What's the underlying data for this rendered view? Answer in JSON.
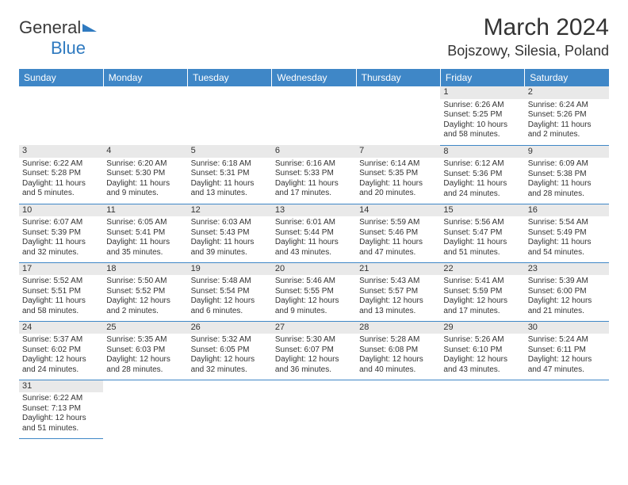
{
  "brand": {
    "name1": "General",
    "name2": "Blue"
  },
  "title": "March 2024",
  "location": "Bojszowy, Silesia, Poland",
  "colors": {
    "header_bg": "#3f87c7",
    "header_text": "#ffffff",
    "daynum_bg": "#e9e9e9",
    "border": "#3f87c7",
    "brand_blue": "#2f7ac0",
    "text": "#333333"
  },
  "weekdays": [
    "Sunday",
    "Monday",
    "Tuesday",
    "Wednesday",
    "Thursday",
    "Friday",
    "Saturday"
  ],
  "weeks": [
    [
      null,
      null,
      null,
      null,
      null,
      {
        "n": "1",
        "sr": "Sunrise: 6:26 AM",
        "ss": "Sunset: 5:25 PM",
        "d1": "Daylight: 10 hours",
        "d2": "and 58 minutes."
      },
      {
        "n": "2",
        "sr": "Sunrise: 6:24 AM",
        "ss": "Sunset: 5:26 PM",
        "d1": "Daylight: 11 hours",
        "d2": "and 2 minutes."
      }
    ],
    [
      {
        "n": "3",
        "sr": "Sunrise: 6:22 AM",
        "ss": "Sunset: 5:28 PM",
        "d1": "Daylight: 11 hours",
        "d2": "and 5 minutes."
      },
      {
        "n": "4",
        "sr": "Sunrise: 6:20 AM",
        "ss": "Sunset: 5:30 PM",
        "d1": "Daylight: 11 hours",
        "d2": "and 9 minutes."
      },
      {
        "n": "5",
        "sr": "Sunrise: 6:18 AM",
        "ss": "Sunset: 5:31 PM",
        "d1": "Daylight: 11 hours",
        "d2": "and 13 minutes."
      },
      {
        "n": "6",
        "sr": "Sunrise: 6:16 AM",
        "ss": "Sunset: 5:33 PM",
        "d1": "Daylight: 11 hours",
        "d2": "and 17 minutes."
      },
      {
        "n": "7",
        "sr": "Sunrise: 6:14 AM",
        "ss": "Sunset: 5:35 PM",
        "d1": "Daylight: 11 hours",
        "d2": "and 20 minutes."
      },
      {
        "n": "8",
        "sr": "Sunrise: 6:12 AM",
        "ss": "Sunset: 5:36 PM",
        "d1": "Daylight: 11 hours",
        "d2": "and 24 minutes."
      },
      {
        "n": "9",
        "sr": "Sunrise: 6:09 AM",
        "ss": "Sunset: 5:38 PM",
        "d1": "Daylight: 11 hours",
        "d2": "and 28 minutes."
      }
    ],
    [
      {
        "n": "10",
        "sr": "Sunrise: 6:07 AM",
        "ss": "Sunset: 5:39 PM",
        "d1": "Daylight: 11 hours",
        "d2": "and 32 minutes."
      },
      {
        "n": "11",
        "sr": "Sunrise: 6:05 AM",
        "ss": "Sunset: 5:41 PM",
        "d1": "Daylight: 11 hours",
        "d2": "and 35 minutes."
      },
      {
        "n": "12",
        "sr": "Sunrise: 6:03 AM",
        "ss": "Sunset: 5:43 PM",
        "d1": "Daylight: 11 hours",
        "d2": "and 39 minutes."
      },
      {
        "n": "13",
        "sr": "Sunrise: 6:01 AM",
        "ss": "Sunset: 5:44 PM",
        "d1": "Daylight: 11 hours",
        "d2": "and 43 minutes."
      },
      {
        "n": "14",
        "sr": "Sunrise: 5:59 AM",
        "ss": "Sunset: 5:46 PM",
        "d1": "Daylight: 11 hours",
        "d2": "and 47 minutes."
      },
      {
        "n": "15",
        "sr": "Sunrise: 5:56 AM",
        "ss": "Sunset: 5:47 PM",
        "d1": "Daylight: 11 hours",
        "d2": "and 51 minutes."
      },
      {
        "n": "16",
        "sr": "Sunrise: 5:54 AM",
        "ss": "Sunset: 5:49 PM",
        "d1": "Daylight: 11 hours",
        "d2": "and 54 minutes."
      }
    ],
    [
      {
        "n": "17",
        "sr": "Sunrise: 5:52 AM",
        "ss": "Sunset: 5:51 PM",
        "d1": "Daylight: 11 hours",
        "d2": "and 58 minutes."
      },
      {
        "n": "18",
        "sr": "Sunrise: 5:50 AM",
        "ss": "Sunset: 5:52 PM",
        "d1": "Daylight: 12 hours",
        "d2": "and 2 minutes."
      },
      {
        "n": "19",
        "sr": "Sunrise: 5:48 AM",
        "ss": "Sunset: 5:54 PM",
        "d1": "Daylight: 12 hours",
        "d2": "and 6 minutes."
      },
      {
        "n": "20",
        "sr": "Sunrise: 5:46 AM",
        "ss": "Sunset: 5:55 PM",
        "d1": "Daylight: 12 hours",
        "d2": "and 9 minutes."
      },
      {
        "n": "21",
        "sr": "Sunrise: 5:43 AM",
        "ss": "Sunset: 5:57 PM",
        "d1": "Daylight: 12 hours",
        "d2": "and 13 minutes."
      },
      {
        "n": "22",
        "sr": "Sunrise: 5:41 AM",
        "ss": "Sunset: 5:59 PM",
        "d1": "Daylight: 12 hours",
        "d2": "and 17 minutes."
      },
      {
        "n": "23",
        "sr": "Sunrise: 5:39 AM",
        "ss": "Sunset: 6:00 PM",
        "d1": "Daylight: 12 hours",
        "d2": "and 21 minutes."
      }
    ],
    [
      {
        "n": "24",
        "sr": "Sunrise: 5:37 AM",
        "ss": "Sunset: 6:02 PM",
        "d1": "Daylight: 12 hours",
        "d2": "and 24 minutes."
      },
      {
        "n": "25",
        "sr": "Sunrise: 5:35 AM",
        "ss": "Sunset: 6:03 PM",
        "d1": "Daylight: 12 hours",
        "d2": "and 28 minutes."
      },
      {
        "n": "26",
        "sr": "Sunrise: 5:32 AM",
        "ss": "Sunset: 6:05 PM",
        "d1": "Daylight: 12 hours",
        "d2": "and 32 minutes."
      },
      {
        "n": "27",
        "sr": "Sunrise: 5:30 AM",
        "ss": "Sunset: 6:07 PM",
        "d1": "Daylight: 12 hours",
        "d2": "and 36 minutes."
      },
      {
        "n": "28",
        "sr": "Sunrise: 5:28 AM",
        "ss": "Sunset: 6:08 PM",
        "d1": "Daylight: 12 hours",
        "d2": "and 40 minutes."
      },
      {
        "n": "29",
        "sr": "Sunrise: 5:26 AM",
        "ss": "Sunset: 6:10 PM",
        "d1": "Daylight: 12 hours",
        "d2": "and 43 minutes."
      },
      {
        "n": "30",
        "sr": "Sunrise: 5:24 AM",
        "ss": "Sunset: 6:11 PM",
        "d1": "Daylight: 12 hours",
        "d2": "and 47 minutes."
      }
    ],
    [
      {
        "n": "31",
        "sr": "Sunrise: 6:22 AM",
        "ss": "Sunset: 7:13 PM",
        "d1": "Daylight: 12 hours",
        "d2": "and 51 minutes."
      },
      null,
      null,
      null,
      null,
      null,
      null
    ]
  ]
}
